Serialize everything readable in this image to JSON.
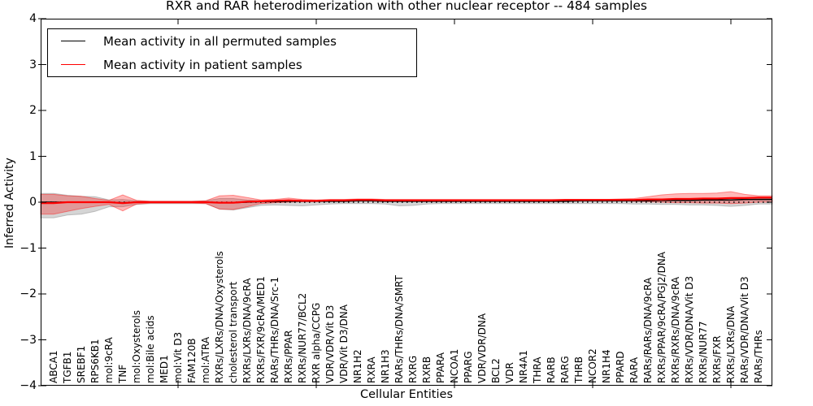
{
  "chart_data": {
    "type": "line",
    "title": "RXR and RAR heterodimerization with other nuclear receptor -- 484 samples",
    "xlabel": "Cellular Entities",
    "ylabel": "Inferred Activity",
    "ylim": [
      -4,
      4
    ],
    "yticks": [
      4,
      3,
      2,
      1,
      0,
      -1,
      -2,
      -3,
      -4
    ],
    "xticks_major_positions": [
      10,
      20,
      30,
      40,
      50
    ],
    "grid": false,
    "legend_position": "upper left",
    "background": "#ffffff",
    "reference_line": {
      "y": 0,
      "style": "dotted",
      "color": "#000000"
    },
    "categories": [
      "ABCA1",
      "TGFB1",
      "SREBF1",
      "RPS6KB1",
      "mol:9cRA",
      "TNF",
      "mol:Oxysterols",
      "mol:Bile acids",
      "MED1",
      "mol:Vit D3",
      "FAM120B",
      "mol:ATRA",
      "RXRs/LXRs/DNA/Oxysterols",
      "cholesterol transport",
      "RXRs/LXRs/DNA/9cRA",
      "RXRs/FXR/9cRA/MED1",
      "RARs/THRs/DNA/Src-1",
      "RXRs/PPAR",
      "RXRs/NUR77/BCL2",
      "RXR alpha/CCPG",
      "VDR/VDR/Vit D3",
      "VDR/Vit D3/DNA",
      "NR1H2",
      "RXRA",
      "NR1H3",
      "RARs/THRs/DNA/SMRT",
      "RXRG",
      "RXRB",
      "PPARA",
      "NCOA1",
      "PPARG",
      "VDR/VDR/DNA",
      "BCL2",
      "VDR",
      "NR4A1",
      "THRA",
      "RARB",
      "RARG",
      "THRB",
      "NCOR2",
      "NR1H4",
      "PPARD",
      "RARA",
      "RARs/RARs/DNA/9cRA",
      "RXRs/PPAR/9cRA/PGJ2/DNA",
      "RXRs/RXRs/DNA/9cRA",
      "RXRs/VDR/DNA/Vit D3",
      "RXRs/NUR77",
      "RXRs/FXR",
      "RXRs/LXRs/DNA",
      "RARs/VDR/DNA/Vit D3",
      "RARs/THRs"
    ],
    "series": [
      {
        "name": "Mean activity in all permuted samples",
        "color": "#000000",
        "values": [
          0.0,
          0.0,
          0.0,
          0.0,
          0.0,
          -0.01,
          0.0,
          0.0,
          0.0,
          0.0,
          0.0,
          0.0,
          -0.01,
          -0.01,
          0.0,
          0.01,
          0.01,
          0.02,
          0.02,
          0.02,
          0.02,
          0.02,
          0.03,
          0.03,
          0.02,
          0.02,
          0.02,
          0.02,
          0.02,
          0.02,
          0.02,
          0.02,
          0.02,
          0.02,
          0.02,
          0.02,
          0.02,
          0.02,
          0.03,
          0.03,
          0.03,
          0.03,
          0.03,
          0.03,
          0.04,
          0.04,
          0.04,
          0.05,
          0.05,
          0.05,
          0.06,
          0.06
        ]
      },
      {
        "name": "Mean activity in patient samples",
        "color": "#ff0000",
        "values": [
          -0.02,
          0.0,
          0.0,
          0.0,
          0.0,
          -0.02,
          0.0,
          0.0,
          0.0,
          0.0,
          0.0,
          0.0,
          -0.01,
          -0.01,
          0.01,
          0.02,
          0.03,
          0.04,
          0.03,
          0.03,
          0.04,
          0.04,
          0.05,
          0.05,
          0.04,
          0.04,
          0.04,
          0.04,
          0.04,
          0.04,
          0.04,
          0.04,
          0.04,
          0.04,
          0.04,
          0.04,
          0.04,
          0.05,
          0.05,
          0.05,
          0.05,
          0.05,
          0.05,
          0.06,
          0.06,
          0.07,
          0.07,
          0.08,
          0.08,
          0.09,
          0.09,
          0.1
        ]
      }
    ],
    "bands": [
      {
        "name": "permuted-samples-range",
        "fill": "#888888",
        "opacity": 0.35,
        "upper": [
          0.19,
          0.15,
          0.13,
          0.12,
          0.05,
          0.06,
          0.03,
          0.02,
          0.02,
          0.02,
          0.02,
          0.03,
          0.08,
          0.08,
          0.05,
          0.03,
          0.02,
          0.02,
          0.02,
          0.02,
          0.01,
          0.01,
          0.01,
          0.01,
          0.01,
          0.01,
          0.01,
          0.01,
          0.01,
          0.01,
          0.01,
          0.01,
          0.01,
          0.01,
          0.01,
          0.01,
          0.01,
          0.01,
          0.01,
          0.01,
          0.01,
          0.01,
          0.02,
          0.02,
          0.02,
          0.03,
          0.03,
          0.03,
          0.04,
          0.04,
          0.05,
          0.08
        ],
        "lower": [
          -0.34,
          -0.28,
          -0.26,
          -0.2,
          -0.1,
          -0.1,
          -0.05,
          -0.03,
          -0.03,
          -0.03,
          -0.03,
          -0.03,
          -0.15,
          -0.17,
          -0.12,
          -0.07,
          -0.06,
          -0.07,
          -0.08,
          -0.06,
          -0.04,
          -0.03,
          -0.03,
          -0.03,
          -0.04,
          -0.08,
          -0.07,
          -0.04,
          -0.03,
          -0.03,
          -0.03,
          -0.03,
          -0.03,
          -0.03,
          -0.03,
          -0.03,
          -0.03,
          -0.03,
          -0.03,
          -0.03,
          -0.03,
          -0.03,
          -0.04,
          -0.04,
          -0.05,
          -0.05,
          -0.06,
          -0.06,
          -0.07,
          -0.09,
          -0.07,
          -0.04
        ]
      },
      {
        "name": "patient-samples-range",
        "fill": "#ff0000",
        "opacity": 0.28,
        "upper": [
          0.17,
          0.14,
          0.13,
          0.08,
          0.04,
          0.16,
          0.04,
          0.02,
          0.02,
          0.02,
          0.02,
          0.03,
          0.14,
          0.15,
          0.1,
          0.05,
          0.06,
          0.09,
          0.06,
          0.05,
          0.06,
          0.06,
          0.07,
          0.07,
          0.06,
          0.06,
          0.06,
          0.06,
          0.06,
          0.06,
          0.06,
          0.06,
          0.06,
          0.06,
          0.06,
          0.06,
          0.06,
          0.06,
          0.06,
          0.06,
          0.06,
          0.07,
          0.08,
          0.12,
          0.16,
          0.18,
          0.19,
          0.19,
          0.2,
          0.23,
          0.17,
          0.14
        ],
        "lower": [
          -0.26,
          -0.2,
          -0.14,
          -0.09,
          -0.05,
          -0.19,
          -0.04,
          -0.02,
          -0.02,
          -0.02,
          -0.02,
          -0.03,
          -0.15,
          -0.16,
          -0.1,
          -0.03,
          -0.01,
          0.0,
          0.01,
          0.01,
          0.02,
          0.02,
          0.03,
          0.03,
          0.02,
          0.02,
          0.02,
          0.02,
          0.02,
          0.02,
          0.02,
          0.02,
          0.02,
          0.02,
          0.02,
          0.02,
          0.02,
          0.03,
          0.03,
          0.03,
          0.03,
          0.03,
          0.02,
          0.01,
          0.0,
          -0.01,
          -0.01,
          -0.02,
          -0.02,
          -0.03,
          -0.02,
          0.0
        ]
      }
    ]
  }
}
